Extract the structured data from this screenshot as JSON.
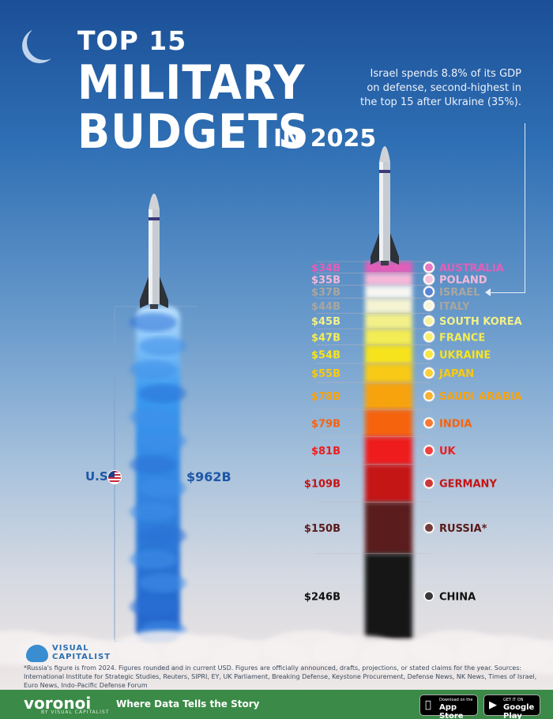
{
  "title": {
    "line1": "TOP 15",
    "line2": "MILITARY",
    "line3": "BUDGETS",
    "year": "IN 2025"
  },
  "callout": {
    "text": "Israel spends 8.8% of its GDP on defense, second-highest in the top 15 after Ukraine (35%)."
  },
  "colors": {
    "us_blue": "#2f7fe0",
    "label_blue": "#1f57a6",
    "footer_green": "#3b8a47"
  },
  "chart_data": {
    "type": "bar",
    "unit": "USD billions",
    "us": {
      "country": "U.S.",
      "value": 962,
      "label": "$962B",
      "color": "#2f7fe0"
    },
    "stack": [
      {
        "country": "AUSTRALIA",
        "value": 34,
        "label": "$34B",
        "color": "#e15fb8"
      },
      {
        "country": "POLAND",
        "value": 35,
        "label": "$35B",
        "color": "#f5b8d8"
      },
      {
        "country": "ISRAEL",
        "value": 37,
        "label": "$37B",
        "color": "#f7f5f2"
      },
      {
        "country": "ITALY",
        "value": 44,
        "label": "$44B",
        "color": "#f4f3d2"
      },
      {
        "country": "SOUTH KOREA",
        "value": 45,
        "label": "$45B",
        "color": "#f3f08a"
      },
      {
        "country": "FRANCE",
        "value": 47,
        "label": "$47B",
        "color": "#f4ec55"
      },
      {
        "country": "UKRAINE",
        "value": 54,
        "label": "$54B",
        "color": "#f7e31d"
      },
      {
        "country": "JAPAN",
        "value": 55,
        "label": "$55B",
        "color": "#f8c912"
      },
      {
        "country": "SAUDI ARABIA",
        "value": 78,
        "label": "$78B",
        "color": "#f7a30f"
      },
      {
        "country": "INDIA",
        "value": 79,
        "label": "$79B",
        "color": "#f5630f"
      },
      {
        "country": "UK",
        "value": 81,
        "label": "$81B",
        "color": "#ee1c1c"
      },
      {
        "country": "GERMANY",
        "value": 109,
        "label": "$109B",
        "color": "#c51414"
      },
      {
        "country": "RUSSIA*",
        "value": 150,
        "label": "$150B",
        "color": "#5a1a1a"
      },
      {
        "country": "CHINA",
        "value": 246,
        "label": "$246B",
        "color": "#151515"
      }
    ]
  },
  "footnote": "*Russia's figure is from 2024. Figures rounded and in current USD. Figures are officially announced, drafts, projections, or stated claims for the year. Sources: International Institute for Strategic Studies, Reuters, SIPRI, EY, UK Parliament, Breaking Defense, Keystone Procurement, Defense News, NK News, Times of Israel, Euro News, Indo-Pacific Defense Forum",
  "brand": {
    "vc_line1": "VISUAL",
    "vc_line2": "CAPITALIST",
    "voronoi": "voronoi",
    "voronoi_sub": "BY VISUAL CAPITALIST",
    "tagline": "Where Data Tells the Story",
    "appstore_small": "Download on the",
    "appstore_big": "App Store",
    "googleplay_small": "GET IT ON",
    "googleplay_big": "Google Play"
  }
}
